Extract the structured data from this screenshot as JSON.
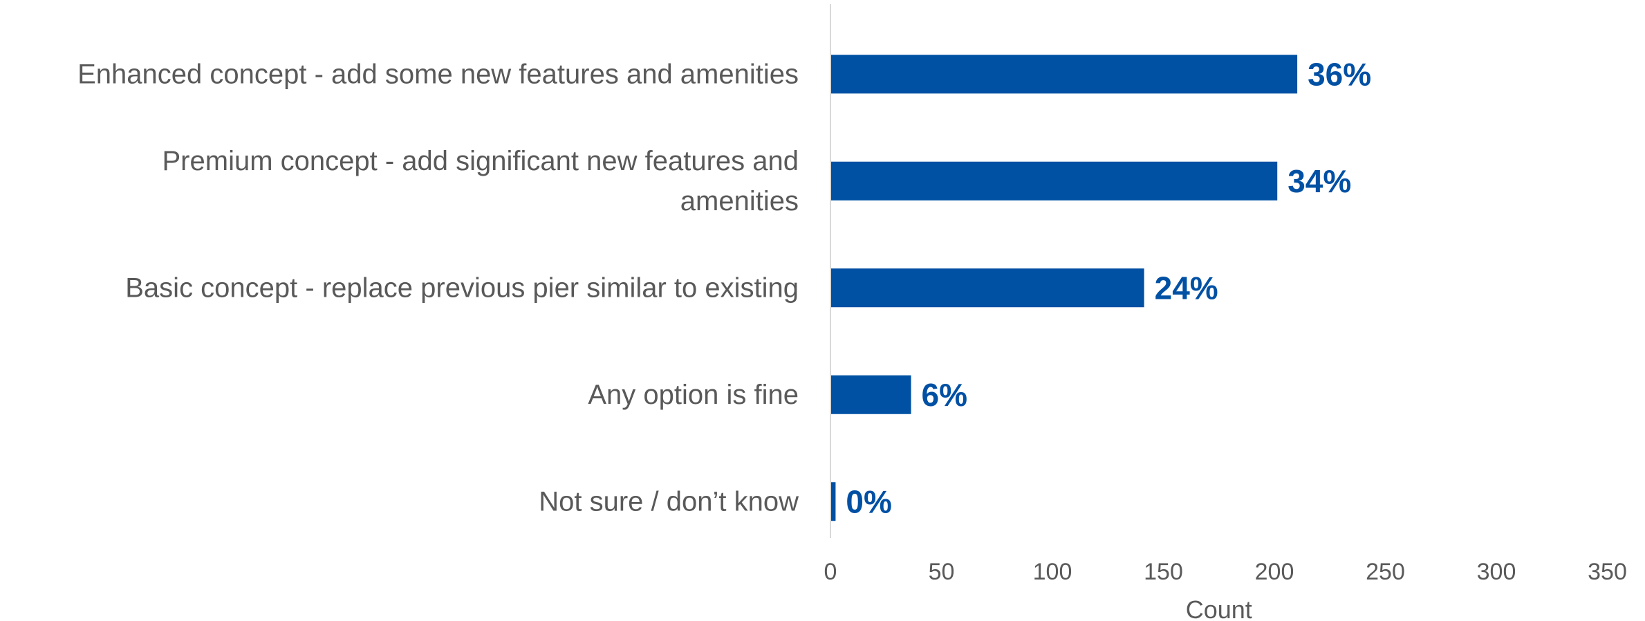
{
  "chart_data": {
    "type": "bar",
    "orientation": "horizontal",
    "categories": [
      [
        "Enhanced concept - add some new features and amenities"
      ],
      [
        "Premium concept - add significant new features and",
        "amenities"
      ],
      [
        "Basic concept - replace previous pier similar to existing"
      ],
      [
        "Any option is fine"
      ],
      [
        "Not sure / don’t know"
      ]
    ],
    "values": [
      210,
      201,
      141,
      36,
      2
    ],
    "data_labels": [
      "36%",
      "34%",
      "24%",
      "6%",
      "0%"
    ],
    "xlabel": "Count",
    "xlim": [
      0,
      350
    ],
    "xticks": [
      0,
      50,
      100,
      150,
      200,
      250,
      300,
      350
    ],
    "grid": false,
    "legend": "none"
  },
  "colors": {
    "bar": "#0050A4",
    "data_label": "#0050A4",
    "axis_line": "#D9D9D9",
    "text": "#595959"
  }
}
